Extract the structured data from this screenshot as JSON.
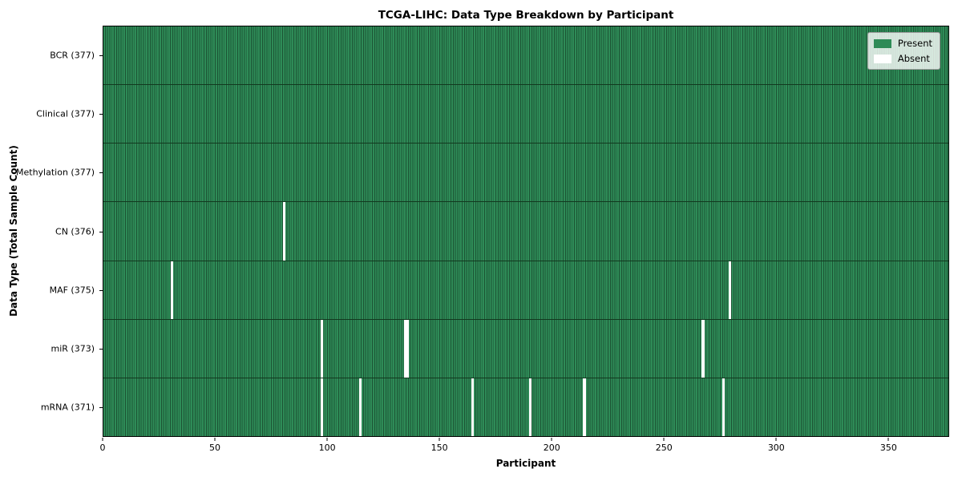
{
  "chart_data": {
    "type": "heatmap",
    "title": "TCGA-LIHC: Data Type Breakdown by Participant",
    "xlabel": "Participant",
    "ylabel": "Data Type (Total Sample Count)",
    "xlim": [
      0,
      377
    ],
    "n_participants": 377,
    "x_ticks": [
      0,
      50,
      100,
      150,
      200,
      250,
      300,
      350
    ],
    "grid": false,
    "legend_position": "upper right",
    "colors": {
      "present": "#2e8b57",
      "present_edge": "#1c5434",
      "absent": "#ffffff",
      "row_divider": "#12391f",
      "spine": "#000000",
      "legend_bg": "rgba(255,255,255,0.8)"
    },
    "legend": [
      {
        "label": "Present",
        "color": "#2e8b57"
      },
      {
        "label": "Absent",
        "color": "#ffffff"
      }
    ],
    "rows": [
      {
        "label": "BCR (377)",
        "data_type": "BCR",
        "present_count": 377,
        "absent_participants": []
      },
      {
        "label": "Clinical (377)",
        "data_type": "Clinical",
        "present_count": 377,
        "absent_participants": []
      },
      {
        "label": "Methylation (377)",
        "data_type": "Methylation",
        "present_count": 377,
        "absent_participants": []
      },
      {
        "label": "CN (376)",
        "data_type": "CN",
        "present_count": 376,
        "absent_participants": [
          80
        ]
      },
      {
        "label": "MAF (375)",
        "data_type": "MAF",
        "present_count": 375,
        "absent_participants": [
          30,
          279
        ]
      },
      {
        "label": "miR (373)",
        "data_type": "miR",
        "present_count": 373,
        "absent_participants": [
          97,
          134,
          135,
          267
        ]
      },
      {
        "label": "mRNA (371)",
        "data_type": "mRNA",
        "present_count": 371,
        "absent_participants": [
          97,
          114,
          164,
          190,
          214,
          276
        ]
      }
    ]
  }
}
